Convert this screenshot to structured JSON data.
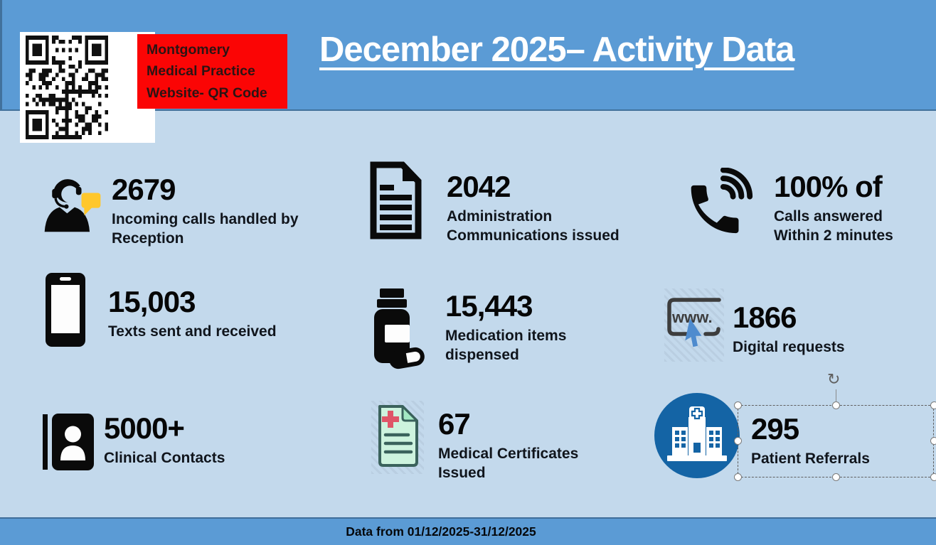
{
  "header": {
    "title": "December 2025– Activity Data"
  },
  "qr_card": {
    "label": "Montgomery\nMedical Practice\nWebsite- QR Code"
  },
  "stats": [
    {
      "id": "incoming-calls",
      "value": "2679",
      "label": "Incoming calls handled by\nReception"
    },
    {
      "id": "admin-communications",
      "value": "2042",
      "label": "Administration\nCommunications issued"
    },
    {
      "id": "calls-answered",
      "value": "100% of",
      "label": "Calls answered\nWithin 2 minutes"
    },
    {
      "id": "texts",
      "value": "15,003",
      "label": "Texts sent and received"
    },
    {
      "id": "medication-items",
      "value": "15,443",
      "label": "Medication items\ndispensed"
    },
    {
      "id": "digital-requests",
      "value": "1866",
      "label": "Digital requests"
    },
    {
      "id": "clinical-contacts",
      "value": "5000+",
      "label": "Clinical Contacts"
    },
    {
      "id": "medical-certificates",
      "value": "67",
      "label": "Medical Certificates\nIssued"
    },
    {
      "id": "patient-referrals",
      "value": "295",
      "label": "Patient Referrals"
    }
  ],
  "icons": {
    "www_label": "www.",
    "rotate_glyph": "↻"
  },
  "footer": {
    "text": "Data from 01/12/2025-31/12/2025"
  },
  "colors": {
    "banner_blue": "#5B9BD5",
    "body_blue": "#C3D9EC",
    "border_blue": "#41719C",
    "red_label": "#FB0505",
    "bubble_yellow": "#FFC72C",
    "cursor_blue": "#4E8BCE",
    "hospital_blue": "#1464A5",
    "certificate_green": "#CDF3DE",
    "certificate_outline": "#3A625C",
    "certificate_cross": "#DF5668"
  }
}
